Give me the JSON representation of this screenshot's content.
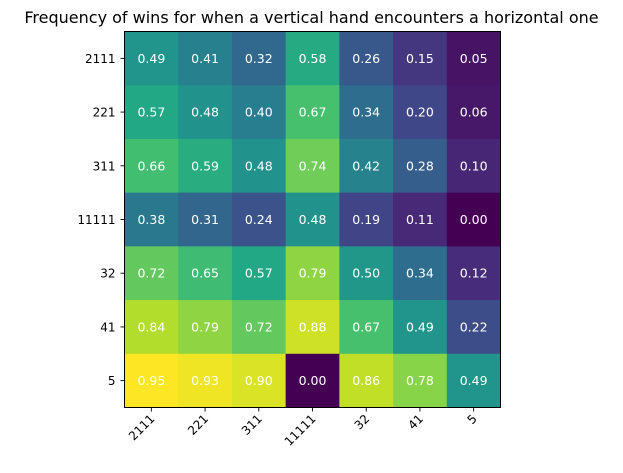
{
  "chart_data": {
    "type": "heatmap",
    "title": "Frequency of wins for when a vertical hand encounters a horizontal one",
    "xlabel": "",
    "ylabel": "",
    "x_categories": [
      "2111",
      "221",
      "311",
      "11111",
      "32",
      "41",
      "5"
    ],
    "y_categories": [
      "2111",
      "221",
      "311",
      "11111",
      "32",
      "41",
      "5"
    ],
    "values": [
      [
        0.49,
        0.41,
        0.32,
        0.58,
        0.26,
        0.15,
        0.05
      ],
      [
        0.57,
        0.48,
        0.4,
        0.67,
        0.34,
        0.2,
        0.06
      ],
      [
        0.66,
        0.59,
        0.48,
        0.74,
        0.42,
        0.28,
        0.1
      ],
      [
        0.38,
        0.31,
        0.24,
        0.48,
        0.19,
        0.11,
        0.0
      ],
      [
        0.72,
        0.65,
        0.57,
        0.79,
        0.5,
        0.34,
        0.12
      ],
      [
        0.84,
        0.79,
        0.72,
        0.88,
        0.67,
        0.49,
        0.22
      ],
      [
        0.95,
        0.93,
        0.9,
        0.0,
        0.86,
        0.78,
        0.49
      ]
    ],
    "value_format": "0.00",
    "colormap": "viridis",
    "annotation_color": "#ffffff",
    "x_tick_rotation_deg": 45,
    "grid": false,
    "legend": "none"
  }
}
